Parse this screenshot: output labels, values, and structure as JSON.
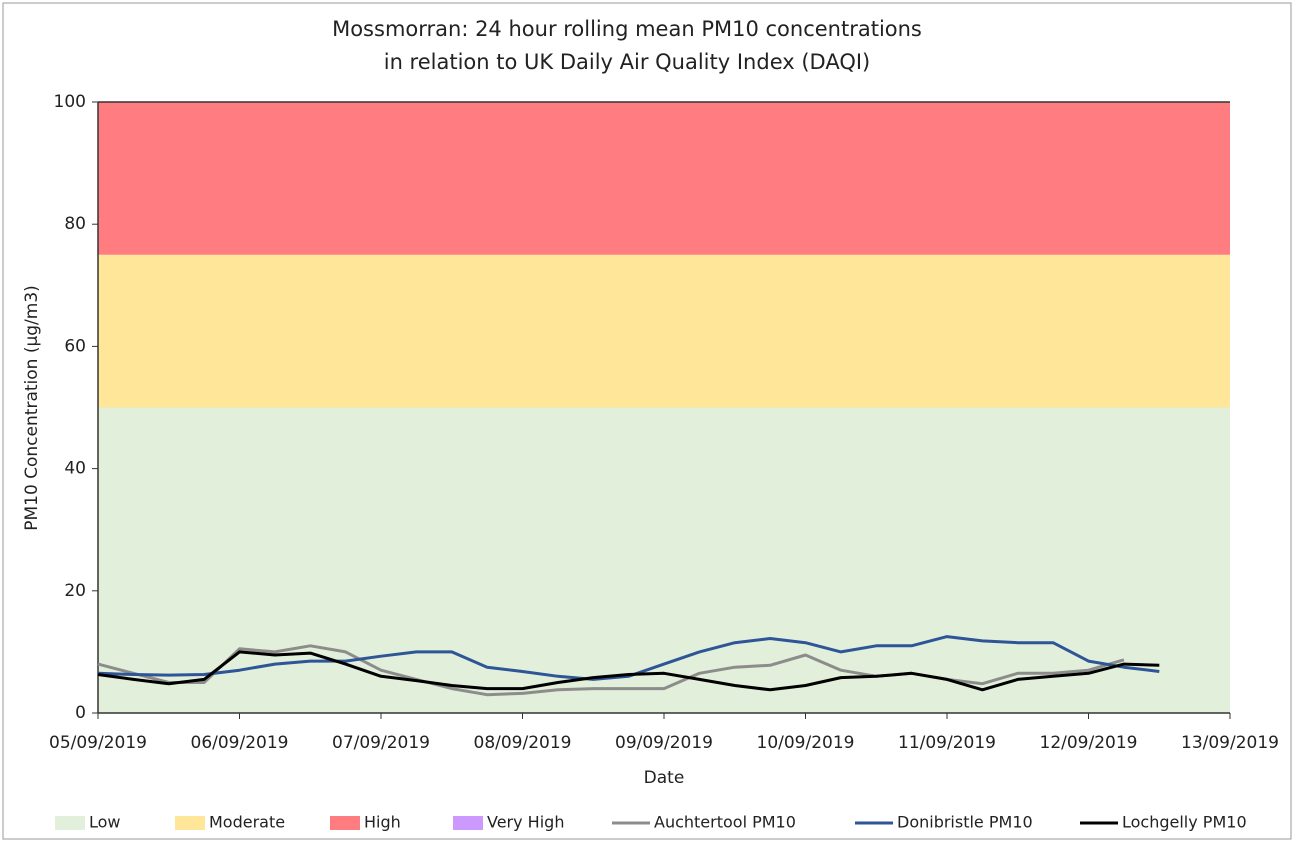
{
  "chart_data": {
    "type": "line",
    "title": [
      "Mossmorran: 24 hour rolling mean PM10 concentrations",
      "in relation to UK Daily Air Quality Index (DAQI)"
    ],
    "x_label": "Date",
    "y_label": "PM10 Concentration (µg/m3)",
    "bands": [
      {
        "name": "Low",
        "color": "#e2efda",
        "range": [
          0,
          50
        ]
      },
      {
        "name": "Moderate",
        "color": "#ffe699",
        "range": [
          50,
          75
        ]
      },
      {
        "name": "High",
        "color": "#ff7c80",
        "range": [
          75,
          100
        ]
      },
      {
        "name": "Very High",
        "color": "#cc99ff"
      }
    ],
    "x": [
      0,
      0.25,
      0.5,
      0.75,
      1,
      1.25,
      1.5,
      1.75,
      2,
      2.25,
      2.5,
      2.75,
      3,
      3.25,
      3.5,
      3.75,
      4,
      4.25,
      4.5,
      4.75,
      5,
      5.25,
      5.5,
      5.75,
      6,
      6.25,
      6.5,
      6.75,
      7,
      7.25,
      7.5
    ],
    "series": [
      {
        "name": "Auchtertool PM10",
        "color": "#8c8c8c",
        "values": [
          8,
          6.5,
          5,
          5,
          10.5,
          10,
          11,
          10,
          7,
          5.5,
          4,
          3,
          3.2,
          3.8,
          4,
          4,
          4,
          6.5,
          7.5,
          7.8,
          9.5,
          7,
          6,
          6.5,
          5.5,
          4.8,
          6.5,
          6.5,
          7,
          8.7,
          null
        ]
      },
      {
        "name": "Donibristle PM10",
        "color": "#2e5597",
        "values": [
          6.5,
          6.3,
          6.2,
          6.3,
          7,
          8,
          8.5,
          8.5,
          9.3,
          10,
          10,
          7.5,
          6.8,
          6,
          5.5,
          6,
          8,
          10,
          11.5,
          12.2,
          11.5,
          10,
          11,
          11,
          12.5,
          11.8,
          11.5,
          11.5,
          8.5,
          7.5,
          6.8
        ]
      },
      {
        "name": "Lochgelly PM10",
        "color": "#000000",
        "values": [
          6.3,
          5.5,
          4.8,
          5.5,
          10,
          9.5,
          9.8,
          8,
          6,
          5.3,
          4.5,
          4,
          4,
          5,
          5.8,
          6.3,
          6.5,
          5.5,
          4.5,
          3.8,
          4.5,
          5.8,
          6,
          6.5,
          5.5,
          3.8,
          5.5,
          6,
          6.5,
          8,
          7.8
        ]
      }
    ],
    "xlim": [
      0,
      8
    ],
    "xticks": [
      {
        "value": 0,
        "label": "05/09/2019"
      },
      {
        "value": 1,
        "label": "06/09/2019"
      },
      {
        "value": 2,
        "label": "07/09/2019"
      },
      {
        "value": 3,
        "label": "08/09/2019"
      },
      {
        "value": 4,
        "label": "09/09/2019"
      },
      {
        "value": 5,
        "label": "10/09/2019"
      },
      {
        "value": 6,
        "label": "11/09/2019"
      },
      {
        "value": 7,
        "label": "12/09/2019"
      },
      {
        "value": 8,
        "label": "13/09/2019"
      }
    ],
    "ylim": [
      0,
      100
    ],
    "yticks": [
      0,
      20,
      40,
      60,
      80,
      100
    ],
    "legend": "bottom"
  }
}
